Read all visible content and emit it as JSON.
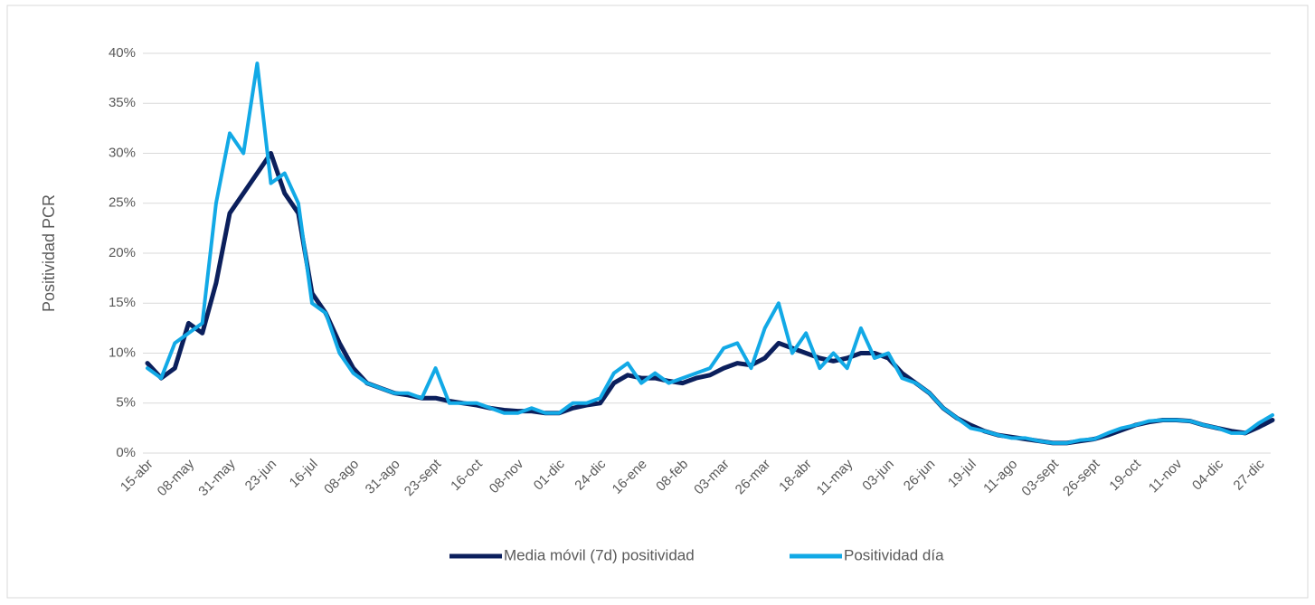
{
  "chart_data": {
    "type": "line",
    "y_label": "Positividad PCR",
    "categories": [
      "15-abr",
      null,
      null,
      "08-may",
      null,
      null,
      "31-may",
      null,
      null,
      "23-jun",
      null,
      null,
      "16-jul",
      null,
      null,
      "08-ago",
      null,
      null,
      "31-ago",
      null,
      null,
      "23-sept",
      null,
      null,
      "16-oct",
      null,
      null,
      "08-nov",
      null,
      null,
      "01-dic",
      null,
      null,
      "24-dic",
      null,
      null,
      "16-ene",
      null,
      null,
      "08-feb",
      null,
      null,
      "03-mar",
      null,
      null,
      "26-mar",
      null,
      null,
      "18-abr",
      null,
      null,
      "11-may",
      null,
      null,
      "03-jun",
      null,
      null,
      "26-jun",
      null,
      null,
      "19-jul",
      null,
      null,
      "11-ago",
      null,
      null,
      "03-sept",
      null,
      null,
      "26-sept",
      null,
      null,
      "19-oct",
      null,
      null,
      "11-nov",
      null,
      null,
      "04-dic",
      null,
      null,
      "27-dic",
      null
    ],
    "series": [
      {
        "name": "Media móvil (7d) positividad",
        "color": "#0b1f5c",
        "values": [
          9,
          7.5,
          8.5,
          13,
          12,
          17,
          24,
          26,
          28,
          30,
          26,
          24,
          16,
          14,
          11,
          8.5,
          7,
          6.5,
          6,
          5.8,
          5.5,
          5.5,
          5.2,
          5,
          4.8,
          4.5,
          4.3,
          4.2,
          4.2,
          4,
          4,
          4.5,
          4.8,
          5,
          7,
          7.8,
          7.5,
          7.5,
          7.2,
          7,
          7.5,
          7.8,
          8.5,
          9,
          8.8,
          9.5,
          11,
          10.5,
          10,
          9.5,
          9.2,
          9.5,
          10,
          10,
          9.5,
          8,
          7,
          6,
          4.5,
          3.5,
          2.8,
          2.2,
          1.8,
          1.6,
          1.4,
          1.2,
          1,
          1,
          1.2,
          1.4,
          1.8,
          2.3,
          2.8,
          3.1,
          3.3,
          3.3,
          3.2,
          2.8,
          2.5,
          2.2,
          2,
          2.6,
          3.3
        ]
      },
      {
        "name": "Positividad día",
        "color": "#12a9e6",
        "values": [
          8.5,
          7.5,
          11,
          12,
          13,
          25,
          32,
          30,
          39,
          27,
          28,
          25,
          15,
          14,
          10,
          8,
          7,
          6.5,
          6,
          6,
          5.5,
          8.5,
          5,
          5,
          5,
          4.5,
          4,
          4,
          4.5,
          4,
          4,
          5,
          5,
          5.5,
          8,
          9,
          7,
          8,
          7,
          7.5,
          8,
          8.5,
          10.5,
          11,
          8.5,
          12.5,
          15,
          10,
          12,
          8.5,
          10,
          8.5,
          12.5,
          9.5,
          10,
          7.5,
          7,
          6,
          4.5,
          3.5,
          2.5,
          2.2,
          1.8,
          1.5,
          1.5,
          1.2,
          1,
          1,
          1.3,
          1.4,
          2,
          2.5,
          2.8,
          3.2,
          3.3,
          3.3,
          3.2,
          2.8,
          2.5,
          2,
          2,
          3,
          3.8
        ]
      }
    ],
    "ylim": [
      0,
      40
    ],
    "yticks": [
      {
        "value": 0,
        "label": "0%"
      },
      {
        "value": 5,
        "label": "5%"
      },
      {
        "value": 10,
        "label": "10%"
      },
      {
        "value": 15,
        "label": "15%"
      },
      {
        "value": 20,
        "label": "20%"
      },
      {
        "value": 25,
        "label": "25%"
      },
      {
        "value": 30,
        "label": "30%"
      },
      {
        "value": 35,
        "label": "35%"
      },
      {
        "value": 40,
        "label": "40%"
      }
    ],
    "grid": true
  }
}
